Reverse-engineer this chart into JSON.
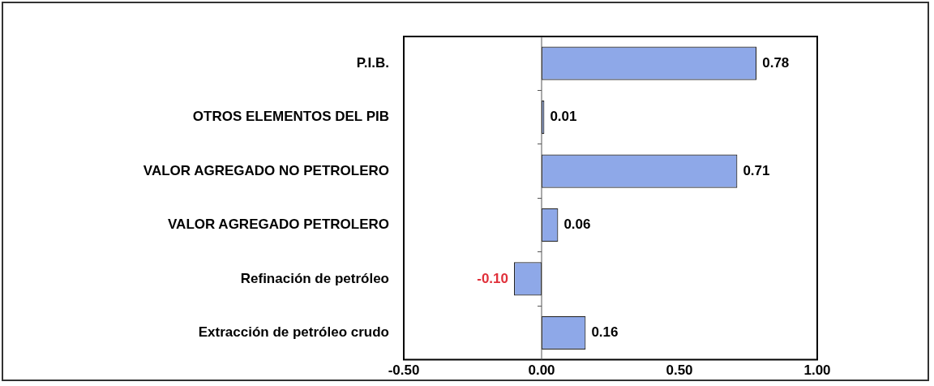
{
  "chart_data": {
    "type": "bar",
    "orientation": "horizontal",
    "categories": [
      "P.I.B.",
      "OTROS ELEMENTOS DEL PIB",
      "VALOR AGREGADO NO PETROLERO",
      "VALOR AGREGADO PETROLERO",
      "Refinación de petróleo",
      "Extracción de petróleo crudo"
    ],
    "values": [
      0.78,
      0.01,
      0.71,
      0.06,
      -0.1,
      0.16
    ],
    "value_labels": [
      "0.78",
      "0.01",
      "0.71",
      "0.06",
      "-0.10",
      "0.16"
    ],
    "color": "#8ea8e8",
    "xlim": [
      -0.5,
      1.0
    ],
    "xticks": [
      {
        "value": -0.5,
        "label": "-0.50"
      },
      {
        "value": 0,
        "label": "0.00"
      },
      {
        "value": 0.5,
        "label": "0.50"
      },
      {
        "value": 1.0,
        "label": "1.00"
      }
    ],
    "ref_lines": [
      {
        "axis": "x",
        "value": 0,
        "color": "#555555"
      }
    ],
    "grid": false,
    "legend": false
  }
}
